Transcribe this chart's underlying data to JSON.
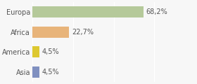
{
  "categories": [
    "Europa",
    "Africa",
    "America",
    "Asia"
  ],
  "values": [
    68.2,
    22.7,
    4.5,
    4.5
  ],
  "labels": [
    "68,2%",
    "22,7%",
    "4,5%",
    "4,5%"
  ],
  "bar_colors": [
    "#b5c99a",
    "#e8b47a",
    "#ddc830",
    "#8090c0"
  ],
  "background_color": "#f7f7f7",
  "xlim": [
    0,
    100
  ],
  "bar_height": 0.55,
  "label_fontsize": 7.0,
  "category_fontsize": 7.0,
  "grid_color": "#ffffff",
  "grid_positions": [
    0,
    25,
    50,
    75,
    100
  ]
}
